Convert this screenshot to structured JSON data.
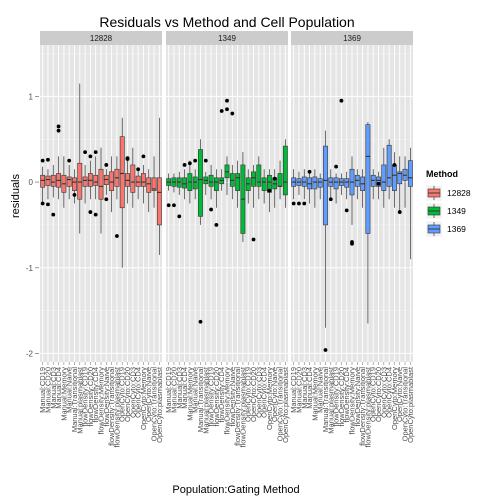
{
  "chart_data": {
    "type": "box",
    "title": "Residuals vs Method and Cell Population",
    "xlabel": "Population:Gating Method",
    "ylabel": "residuals",
    "ylim": [
      -2.1,
      1.6
    ],
    "yticks": [
      -2,
      -1,
      0,
      1
    ],
    "grid": true,
    "legend_position": "right",
    "legend_title": "Method",
    "facets": [
      "12828",
      "1349",
      "1369"
    ],
    "series": [
      {
        "name": "12828",
        "color": "#F8766D"
      },
      {
        "name": "1349",
        "color": "#00BA38"
      },
      {
        "name": "1369",
        "color": "#619CFF"
      }
    ],
    "x_tick_labels": [
      "Manual:CD19",
      "Manual:CD20",
      "Manual:CD3",
      "Manual:CD4",
      "Manual:Memory",
      "Manual:Naive",
      "Manual:Transitional",
      "Manual:plasmablast",
      "flowDensity:CD19",
      "flowDensity:CD20",
      "flowDensity:CD4",
      "flowDensity:Memory",
      "flowDensity:Naive",
      "flowDensity:Transitional",
      "flowDensity:plasmablast",
      "OpenCyto:CD19",
      "OpenCyto:CD20",
      "OpenCyto:CD3",
      "OpenCyto:CD4",
      "OpenCyto:Memory",
      "OpenCyto:Naive",
      "OpenCyto:Transitional",
      "OpenCyto:plasmablast"
    ],
    "boxes": {
      "12828": [
        {
          "low": -0.25,
          "q1": -0.06,
          "median": 0.02,
          "q3": 0.08,
          "high": 0.18,
          "outliers": [
            0.25,
            -0.25
          ]
        },
        {
          "low": -0.2,
          "q1": -0.04,
          "median": 0.03,
          "q3": 0.07,
          "high": 0.15,
          "outliers": [
            0.26,
            -0.26
          ]
        },
        {
          "low": -0.18,
          "q1": -0.05,
          "median": 0.0,
          "q3": 0.08,
          "high": 0.2,
          "outliers": [
            -0.38
          ]
        },
        {
          "low": -0.2,
          "q1": -0.06,
          "median": 0.02,
          "q3": 0.1,
          "high": 0.3,
          "outliers": [
            0.6,
            0.65
          ]
        },
        {
          "low": -0.3,
          "q1": -0.12,
          "median": -0.02,
          "q3": 0.08,
          "high": 0.3,
          "outliers": []
        },
        {
          "low": -0.2,
          "q1": -0.05,
          "median": 0.03,
          "q3": 0.06,
          "high": 0.2,
          "outliers": [
            0.25
          ]
        },
        {
          "low": -0.25,
          "q1": -0.1,
          "median": 0.0,
          "q3": 0.05,
          "high": 0.15,
          "outliers": [
            -0.15
          ]
        },
        {
          "low": -0.6,
          "q1": -0.2,
          "median": 0.0,
          "q3": 0.22,
          "high": 1.15,
          "outliers": []
        },
        {
          "low": -0.25,
          "q1": -0.05,
          "median": 0.02,
          "q3": 0.06,
          "high": 0.2,
          "outliers": [
            0.35
          ]
        },
        {
          "low": -0.2,
          "q1": -0.05,
          "median": 0.02,
          "q3": 0.1,
          "high": 0.25,
          "outliers": [
            0.3,
            -0.35
          ]
        },
        {
          "low": -0.2,
          "q1": -0.04,
          "median": 0.0,
          "q3": 0.08,
          "high": 0.3,
          "outliers": [
            -0.38,
            0.35
          ]
        },
        {
          "low": -0.6,
          "q1": -0.2,
          "median": -0.05,
          "q3": 0.15,
          "high": 0.4,
          "outliers": []
        },
        {
          "low": -0.15,
          "q1": -0.03,
          "median": 0.03,
          "q3": 0.08,
          "high": 0.15,
          "outliers": [
            0.2,
            -0.2
          ]
        },
        {
          "low": -0.35,
          "q1": -0.1,
          "median": 0.0,
          "q3": 0.12,
          "high": 0.3,
          "outliers": []
        },
        {
          "low": -0.2,
          "q1": -0.05,
          "median": 0.05,
          "q3": 0.15,
          "high": 0.3,
          "outliers": [
            -0.63
          ]
        },
        {
          "low": -1.0,
          "q1": -0.3,
          "median": 0.1,
          "q3": 0.53,
          "high": 0.75,
          "outliers": []
        },
        {
          "low": -0.25,
          "q1": -0.05,
          "median": 0.02,
          "q3": 0.1,
          "high": 0.25,
          "outliers": [
            0.28,
            0.27
          ]
        },
        {
          "low": -0.3,
          "q1": -0.12,
          "median": 0.0,
          "q3": 0.2,
          "high": 0.4,
          "outliers": []
        },
        {
          "low": -0.2,
          "q1": -0.05,
          "median": 0.0,
          "q3": 0.07,
          "high": 0.15,
          "outliers": [
            0.15
          ]
        },
        {
          "low": -0.25,
          "q1": -0.05,
          "median": 0.0,
          "q3": 0.1,
          "high": 0.2,
          "outliers": [
            0.3
          ]
        },
        {
          "low": -0.35,
          "q1": -0.12,
          "median": -0.02,
          "q3": 0.05,
          "high": 0.15,
          "outliers": []
        },
        {
          "low": -0.3,
          "q1": -0.1,
          "median": -0.08,
          "q3": 0.05,
          "high": 0.3,
          "outliers": []
        },
        {
          "low": -0.85,
          "q1": -0.5,
          "median": -0.12,
          "q3": 0.05,
          "high": 0.75,
          "outliers": []
        }
      ],
      "1349": [
        {
          "low": -0.1,
          "q1": -0.04,
          "median": 0.0,
          "q3": 0.04,
          "high": 0.1,
          "outliers": [
            -0.27
          ]
        },
        {
          "low": -0.12,
          "q1": -0.05,
          "median": 0.0,
          "q3": 0.05,
          "high": 0.1,
          "outliers": [
            -0.27
          ]
        },
        {
          "low": -0.15,
          "q1": -0.06,
          "median": 0.0,
          "q3": 0.05,
          "high": 0.12,
          "outliers": [
            -0.4
          ]
        },
        {
          "low": -0.2,
          "q1": -0.07,
          "median": -0.02,
          "q3": 0.05,
          "high": 0.15,
          "outliers": [
            0.2
          ]
        },
        {
          "low": -0.25,
          "q1": -0.1,
          "median": 0.0,
          "q3": 0.1,
          "high": 0.25,
          "outliers": [
            0.22
          ]
        },
        {
          "low": -0.2,
          "q1": -0.08,
          "median": 0.0,
          "q3": 0.06,
          "high": 0.15,
          "outliers": [
            0.25
          ]
        },
        {
          "low": -0.5,
          "q1": -0.4,
          "median": 0.03,
          "q3": 0.38,
          "high": 0.5,
          "outliers": [
            -1.63
          ]
        },
        {
          "low": -0.15,
          "q1": -0.02,
          "median": 0.02,
          "q3": 0.06,
          "high": 0.12,
          "outliers": [
            0.25
          ]
        },
        {
          "low": -0.2,
          "q1": -0.05,
          "median": 0.0,
          "q3": 0.08,
          "high": 0.2,
          "outliers": [
            -0.32
          ]
        },
        {
          "low": -0.3,
          "q1": -0.1,
          "median": 0.0,
          "q3": 0.05,
          "high": 0.15,
          "outliers": [
            -0.5
          ]
        },
        {
          "low": -0.1,
          "q1": -0.02,
          "median": 0.02,
          "q3": 0.05,
          "high": 0.15,
          "outliers": [
            0.83
          ]
        },
        {
          "low": -0.15,
          "q1": 0.05,
          "median": 0.12,
          "q3": 0.2,
          "high": 0.3,
          "outliers": [
            0.95,
            0.85
          ]
        },
        {
          "low": -0.2,
          "q1": -0.05,
          "median": 0.02,
          "q3": 0.1,
          "high": 0.2,
          "outliers": [
            0.8
          ]
        },
        {
          "low": -0.3,
          "q1": -0.1,
          "median": 0.05,
          "q3": 0.1,
          "high": 0.25,
          "outliers": []
        },
        {
          "low": -0.7,
          "q1": -0.6,
          "median": -0.2,
          "q3": 0.2,
          "high": 0.35,
          "outliers": []
        },
        {
          "low": -0.25,
          "q1": -0.1,
          "median": -0.02,
          "q3": 0.05,
          "high": 0.15,
          "outliers": []
        },
        {
          "low": -0.3,
          "q1": -0.05,
          "median": 0.05,
          "q3": 0.12,
          "high": 0.2,
          "outliers": [
            -0.67
          ]
        },
        {
          "low": -0.2,
          "q1": -0.05,
          "median": 0.0,
          "q3": 0.2,
          "high": 0.3,
          "outliers": []
        },
        {
          "low": -0.25,
          "q1": -0.1,
          "median": 0.0,
          "q3": 0.05,
          "high": 0.15,
          "outliers": []
        },
        {
          "low": -0.35,
          "q1": -0.12,
          "median": 0.0,
          "q3": 0.08,
          "high": 0.15,
          "outliers": [
            -0.1
          ]
        },
        {
          "low": -0.3,
          "q1": -0.08,
          "median": -0.02,
          "q3": 0.05,
          "high": 0.15,
          "outliers": [
            0.04
          ]
        },
        {
          "low": -0.2,
          "q1": -0.05,
          "median": -0.05,
          "q3": 0.1,
          "high": 0.25,
          "outliers": []
        },
        {
          "low": -0.3,
          "q1": -0.15,
          "median": 0.0,
          "q3": 0.42,
          "high": 0.5,
          "outliers": []
        }
      ],
      "1369": [
        {
          "low": -0.2,
          "q1": -0.05,
          "median": 0.0,
          "q3": 0.05,
          "high": 0.15,
          "outliers": [
            -0.25
          ]
        },
        {
          "low": -0.15,
          "q1": -0.04,
          "median": 0.0,
          "q3": 0.04,
          "high": 0.12,
          "outliers": [
            -0.25
          ]
        },
        {
          "low": -0.2,
          "q1": -0.05,
          "median": 0.0,
          "q3": 0.06,
          "high": 0.15,
          "outliers": [
            -0.25
          ]
        },
        {
          "low": -0.25,
          "q1": -0.08,
          "median": -0.02,
          "q3": 0.05,
          "high": 0.1,
          "outliers": [
            0.12
          ]
        },
        {
          "low": -0.3,
          "q1": -0.08,
          "median": 0.0,
          "q3": 0.06,
          "high": 0.15,
          "outliers": []
        },
        {
          "low": -0.2,
          "q1": -0.06,
          "median": 0.0,
          "q3": 0.04,
          "high": 0.1,
          "outliers": []
        },
        {
          "low": -1.7,
          "q1": -0.5,
          "median": 0.02,
          "q3": 0.42,
          "high": 0.6,
          "outliers": [
            -1.96
          ]
        },
        {
          "low": -0.2,
          "q1": -0.05,
          "median": 0.0,
          "q3": 0.05,
          "high": 0.15,
          "outliers": [
            -0.2
          ]
        },
        {
          "low": -0.25,
          "q1": -0.08,
          "median": 0.0,
          "q3": 0.05,
          "high": 0.1,
          "outliers": [
            0.18
          ]
        },
        {
          "low": -0.15,
          "q1": -0.04,
          "median": 0.0,
          "q3": 0.04,
          "high": 0.1,
          "outliers": [
            0.95
          ]
        },
        {
          "low": -0.2,
          "q1": -0.06,
          "median": 0.0,
          "q3": 0.04,
          "high": 0.12,
          "outliers": [
            -0.33
          ]
        },
        {
          "low": -0.5,
          "q1": -0.15,
          "median": 0.0,
          "q3": 0.15,
          "high": 0.3,
          "outliers": [
            -0.72,
            -0.7
          ]
        },
        {
          "low": -0.2,
          "q1": -0.05,
          "median": 0.02,
          "q3": 0.08,
          "high": 0.15,
          "outliers": []
        },
        {
          "low": -0.3,
          "q1": -0.1,
          "median": -0.02,
          "q3": 0.06,
          "high": 0.15,
          "outliers": []
        },
        {
          "low": -1.65,
          "q1": -0.6,
          "median": 0.3,
          "q3": 0.67,
          "high": 0.7,
          "outliers": []
        },
        {
          "low": -0.2,
          "q1": -0.05,
          "median": 0.02,
          "q3": 0.08,
          "high": 0.15,
          "outliers": []
        },
        {
          "low": -0.2,
          "q1": -0.05,
          "median": 0.02,
          "q3": 0.06,
          "high": 0.12,
          "outliers": [
            -0.02
          ]
        },
        {
          "low": -0.3,
          "q1": -0.1,
          "median": 0.0,
          "q3": 0.2,
          "high": 0.4,
          "outliers": []
        },
        {
          "low": -0.2,
          "q1": -0.05,
          "median": 0.05,
          "q3": 0.43,
          "high": 0.5,
          "outliers": []
        },
        {
          "low": -0.3,
          "q1": -0.1,
          "median": 0.08,
          "q3": 0.2,
          "high": 0.35,
          "outliers": [
            0.2
          ]
        },
        {
          "low": -0.35,
          "q1": -0.02,
          "median": 0.1,
          "q3": 0.12,
          "high": 0.3,
          "outliers": [
            -0.35
          ]
        },
        {
          "low": -0.3,
          "q1": 0.02,
          "median": 0.08,
          "q3": 0.15,
          "high": 0.3,
          "outliers": []
        },
        {
          "low": -0.9,
          "q1": -0.05,
          "median": 0.05,
          "q3": 0.25,
          "high": 0.4,
          "outliers": []
        }
      ]
    }
  }
}
